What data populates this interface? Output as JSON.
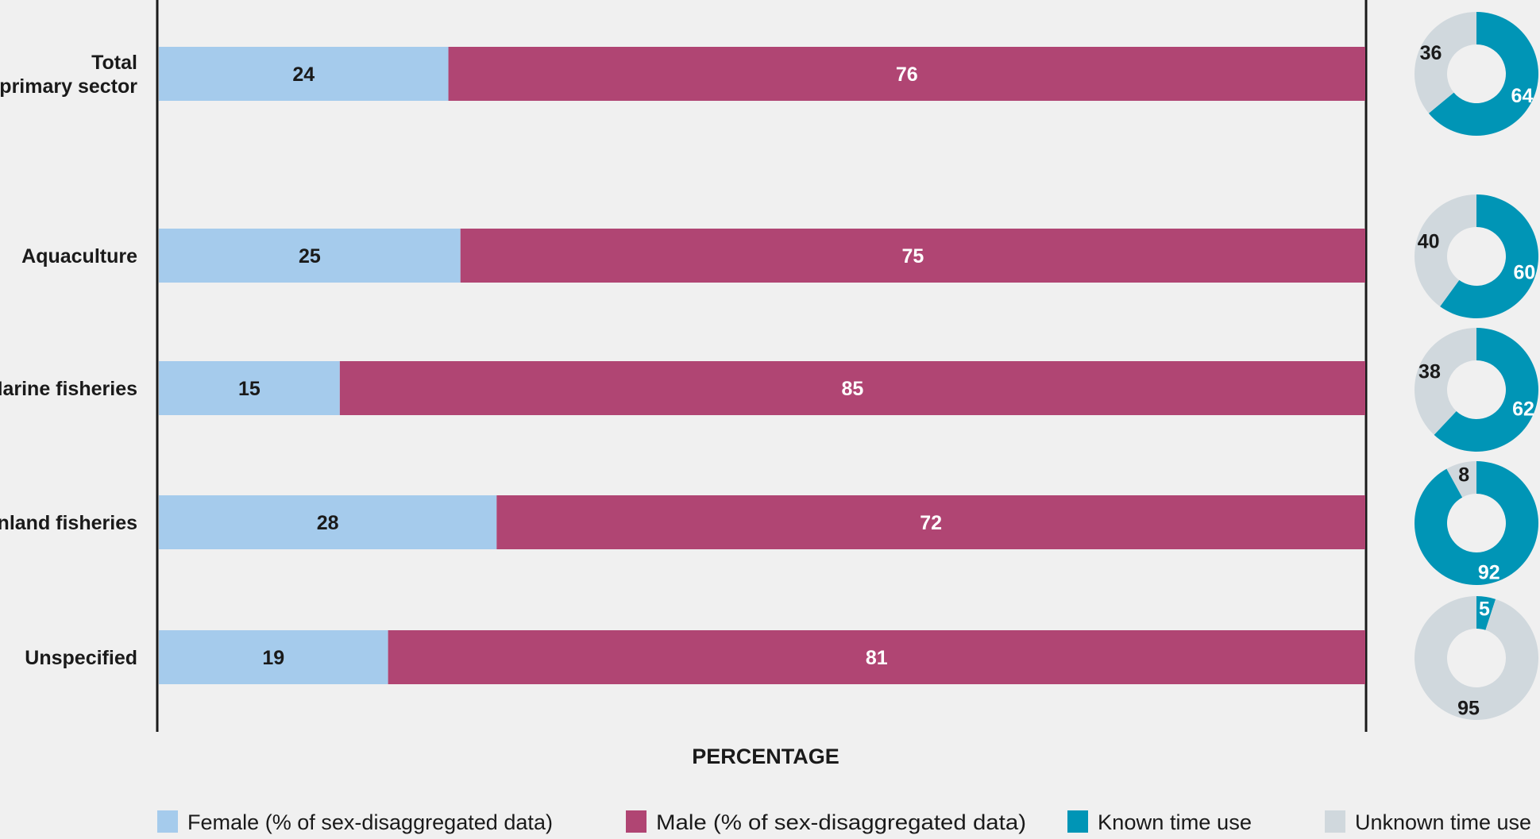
{
  "chart_data": {
    "type": "bar",
    "subtype": "stacked-horizontal-100-with-donuts",
    "categories": [
      "Total primary sector",
      "Aquaculture",
      "Marine fisheries",
      "Inland fisheries",
      "Unspecified"
    ],
    "category_lines": [
      [
        "Total",
        "primary sector"
      ],
      [
        "Aquaculture"
      ],
      [
        "Marine fisheries"
      ],
      [
        "Inland fisheries"
      ],
      [
        "Unspecified"
      ]
    ],
    "series": [
      {
        "name": "Female (% of sex-disaggregated data)",
        "values": [
          24,
          25,
          15,
          28,
          19
        ],
        "color": "#a5cbec"
      },
      {
        "name": "Male (% of sex-disaggregated data)",
        "values": [
          76,
          75,
          85,
          72,
          81
        ],
        "color": "#b04573"
      }
    ],
    "donuts": {
      "series": [
        {
          "name": "Known time use",
          "values": [
            64,
            60,
            62,
            92,
            5
          ],
          "color": "#0095b6"
        },
        {
          "name": "Unknown time use",
          "values": [
            36,
            40,
            38,
            8,
            95
          ],
          "color": "#d0d8dd"
        }
      ]
    },
    "xlabel": "PERCENTAGE",
    "xlim": [
      0,
      100
    ],
    "grid": false,
    "legend_position": "bottom",
    "legend": [
      "Female (% of sex-disaggregated data)",
      "Male (% of sex-disaggregated data)",
      "Known time use",
      "Unknown time use"
    ]
  }
}
